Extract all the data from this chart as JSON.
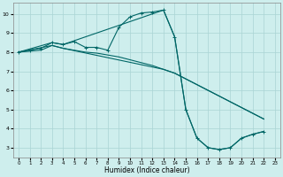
{
  "xlabel": "Humidex (Indice chaleur)",
  "bg_color": "#ceeeed",
  "line_color": "#006666",
  "grid_color": "#aad4d4",
  "xlim": [
    -0.5,
    23.5
  ],
  "ylim": [
    2.5,
    10.6
  ],
  "xticks": [
    0,
    1,
    2,
    3,
    4,
    5,
    6,
    7,
    8,
    9,
    10,
    11,
    12,
    13,
    14,
    15,
    16,
    17,
    18,
    19,
    20,
    21,
    22,
    23
  ],
  "yticks": [
    3,
    4,
    5,
    6,
    7,
    8,
    9,
    10
  ],
  "line1_x": [
    0,
    1,
    2,
    3,
    4,
    5,
    6,
    7,
    8,
    9,
    10,
    11,
    12,
    13,
    14,
    15,
    16,
    17,
    18,
    19,
    20,
    21,
    22
  ],
  "line1_y": [
    8.0,
    8.1,
    8.2,
    8.5,
    8.4,
    8.55,
    8.25,
    8.25,
    8.1,
    9.3,
    9.85,
    10.05,
    10.1,
    10.2,
    8.8,
    5.0,
    3.5,
    3.0,
    2.9,
    3.0,
    3.5,
    3.7,
    3.85
  ],
  "line1_markers": [
    0,
    1,
    2,
    3,
    4,
    5,
    6,
    7,
    8,
    9,
    10,
    11,
    12,
    13,
    14,
    15,
    16,
    17,
    18,
    19,
    20,
    21,
    22
  ],
  "line2_x": [
    0,
    1,
    2,
    3,
    4,
    5,
    6,
    7,
    8,
    9,
    10,
    11,
    12,
    13,
    14,
    15,
    16,
    17,
    18,
    19,
    20,
    21,
    22
  ],
  "line2_y": [
    8.0,
    8.05,
    8.1,
    8.35,
    8.2,
    8.1,
    8.0,
    7.95,
    7.85,
    7.75,
    7.6,
    7.45,
    7.3,
    7.1,
    6.9,
    6.6,
    6.3,
    6.0,
    5.7,
    5.4,
    5.1,
    4.8,
    4.5
  ],
  "line3_x": [
    0,
    3,
    4,
    13,
    14,
    15,
    16,
    17,
    18,
    19,
    20,
    21,
    22
  ],
  "line3_y": [
    8.0,
    8.5,
    8.4,
    10.2,
    8.8,
    5.0,
    3.5,
    3.0,
    2.9,
    3.0,
    3.5,
    3.7,
    3.85
  ],
  "line4_x": [
    0,
    3,
    4,
    13,
    14,
    15,
    16,
    17,
    18,
    19,
    20,
    21,
    22
  ],
  "line4_y": [
    8.0,
    8.35,
    8.2,
    7.1,
    6.9,
    6.6,
    6.3,
    6.0,
    5.7,
    5.4,
    5.1,
    4.8,
    4.5
  ]
}
